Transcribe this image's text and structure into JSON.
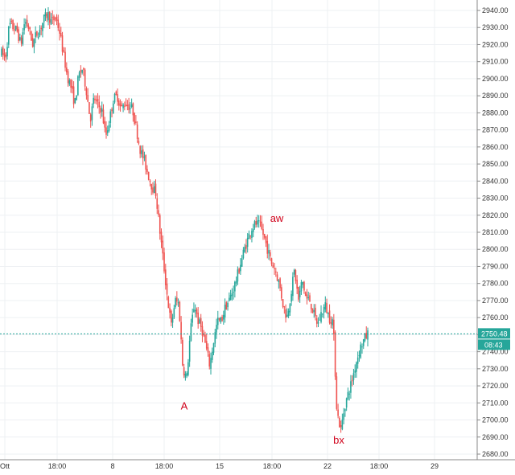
{
  "chart_data": {
    "type": "candlestick",
    "x_tick_labels": [
      "Ott",
      "18:00",
      "8",
      "18:00",
      "15",
      "18:00",
      "22",
      "18:00",
      "29"
    ],
    "y_tick_labels": [
      "2940.00",
      "2930.00",
      "2920.00",
      "2910.00",
      "2900.00",
      "2890.00",
      "2880.00",
      "2870.00",
      "2860.00",
      "2850.00",
      "2840.00",
      "2830.00",
      "2820.00",
      "2810.00",
      "2800.00",
      "2790.00",
      "2780.00",
      "2770.00",
      "2760.00",
      "2750.00",
      "2740.00",
      "2730.00",
      "2720.00",
      "2710.00",
      "2700.00",
      "2690.00",
      "2680.00"
    ],
    "ylim": [
      2677,
      2943
    ],
    "grid": true,
    "colors": {
      "up": "#26a69a",
      "down": "#ef5350",
      "price_line": "#26a69a",
      "annotation": "#d0021b"
    },
    "annotations": [
      {
        "text": "aw",
        "value": 2818
      },
      {
        "text": "A",
        "value": 2708
      },
      {
        "text": "bx",
        "value": 2688
      }
    ],
    "last_price": {
      "value": 2750.48,
      "label": "2750.48",
      "countdown": "08:43"
    },
    "path_points": [
      [
        2915,
        2912
      ],
      [
        2932,
        2930
      ],
      [
        2928,
        2920
      ],
      [
        2934,
        2930
      ],
      [
        2920,
        2926
      ],
      [
        2929,
        2935
      ],
      [
        2938,
        2933
      ],
      [
        2936,
        2928
      ],
      [
        2915,
        2902
      ],
      [
        2895,
        2885
      ],
      [
        2902,
        2906
      ],
      [
        2893,
        2876
      ],
      [
        2889,
        2884
      ],
      [
        2882,
        2866
      ],
      [
        2876,
        2888
      ],
      [
        2890,
        2882
      ],
      [
        2886,
        2884
      ],
      [
        2882,
        2870
      ],
      [
        2858,
        2852
      ],
      [
        2844,
        2837
      ],
      [
        2833,
        2812
      ],
      [
        2792,
        2772
      ],
      [
        2755,
        2770
      ],
      [
        2768,
        2731
      ],
      [
        2724,
        2752
      ],
      [
        2768,
        2758
      ],
      [
        2753,
        2743
      ],
      [
        2732,
        2746
      ],
      [
        2758,
        2758
      ],
      [
        2766,
        2770
      ],
      [
        2776,
        2783
      ],
      [
        2792,
        2800
      ],
      [
        2807,
        2813
      ],
      [
        2815,
        2814
      ],
      [
        2808,
        2800
      ],
      [
        2792,
        2788
      ],
      [
        2780,
        2768
      ],
      [
        2760,
        2773
      ],
      [
        2788,
        2770
      ],
      [
        2782,
        2771
      ],
      [
        2770,
        2762
      ],
      [
        2756,
        2763
      ],
      [
        2767,
        2760
      ],
      [
        2758,
        2705
      ],
      [
        2694,
        2708
      ],
      [
        2716,
        2724
      ],
      [
        2734,
        2742
      ],
      [
        2747,
        2750.48
      ]
    ]
  }
}
